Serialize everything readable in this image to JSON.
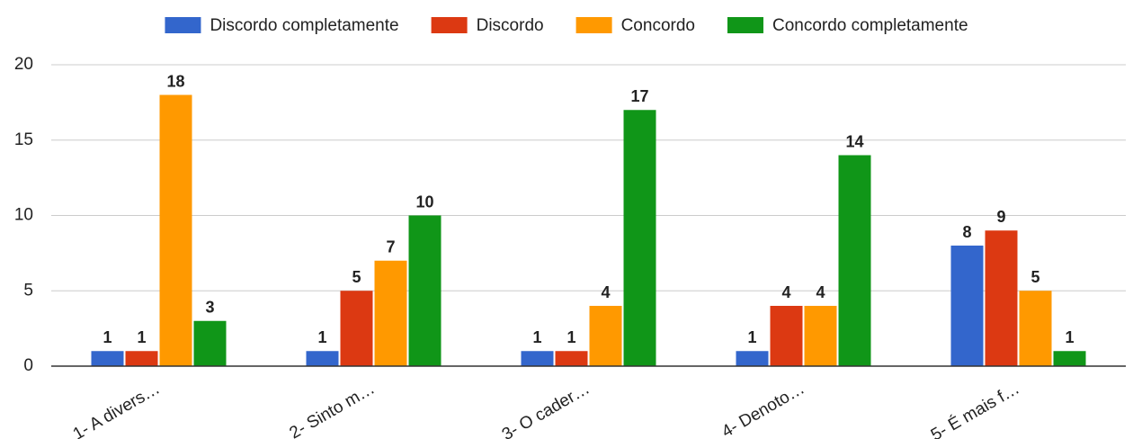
{
  "chart_data": {
    "type": "bar",
    "categories": [
      "1- A divers…",
      "2- Sinto m…",
      "3- O cader…",
      "4- Denoto…",
      "5- É mais f…"
    ],
    "series": [
      {
        "name": "Discordo completamente",
        "color": "#3366cc",
        "values": [
          1,
          1,
          1,
          1,
          8
        ]
      },
      {
        "name": "Discordo",
        "color": "#dc3912",
        "values": [
          1,
          5,
          1,
          4,
          9
        ]
      },
      {
        "name": "Concordo",
        "color": "#ff9900",
        "values": [
          18,
          7,
          4,
          4,
          5
        ]
      },
      {
        "name": "Concordo completamente",
        "color": "#109618",
        "values": [
          3,
          10,
          17,
          14,
          1
        ]
      }
    ],
    "ylim": [
      0,
      20
    ],
    "yticks": [
      0,
      5,
      10,
      15,
      20
    ],
    "grid": true,
    "legend": "top"
  }
}
